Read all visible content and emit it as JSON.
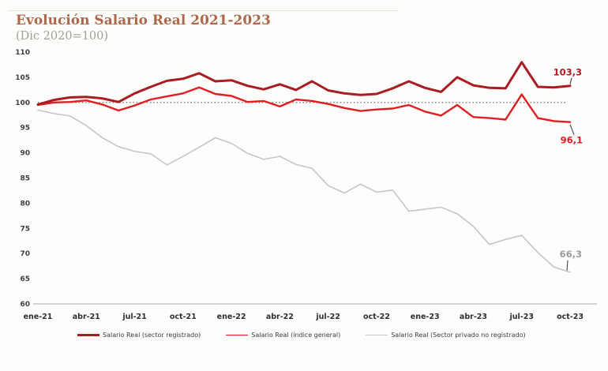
{
  "header": {
    "title": "Evolución Salario Real 2021-2023",
    "subtitle": "(Dic 2020=100)"
  },
  "chart_data": {
    "type": "line",
    "title": "Evolución Salario Real 2021-2023",
    "subtitle": "(Dic 2020=100)",
    "x": [
      "ene-21",
      "feb-21",
      "mar-21",
      "abr-21",
      "may-21",
      "jun-21",
      "jul-21",
      "ago-21",
      "sep-21",
      "oct-21",
      "nov-21",
      "dic-21",
      "ene-22",
      "feb-22",
      "mar-22",
      "abr-22",
      "may-22",
      "jun-22",
      "jul-22",
      "ago-22",
      "sep-22",
      "oct-22",
      "nov-22",
      "dic-22",
      "ene-23",
      "feb-23",
      "mar-23",
      "abr-23",
      "may-23",
      "jun-23",
      "jul-23",
      "ago-23",
      "sep-23",
      "oct-23"
    ],
    "x_tick_labels": [
      "ene-21",
      "abr-21",
      "jul-21",
      "oct-21",
      "ene-22",
      "abr-22",
      "jul-22",
      "oct-22",
      "ene-23",
      "abr-23",
      "jul-23",
      "oct-23"
    ],
    "ylim": [
      60,
      110
    ],
    "y_ticks": [
      110,
      105,
      100,
      95,
      90,
      85,
      80,
      75,
      70,
      65,
      60
    ],
    "reference_line": {
      "value": 100,
      "style": "dotted",
      "color": "#767676"
    },
    "baseline_value": 60,
    "grid": "off",
    "legend_position": "bottom",
    "series": [
      {
        "name": "Salario Real (sector registrado)",
        "color": "#a81c22",
        "label_color": "#a81c22",
        "line_width": 3,
        "end_label": "103,3",
        "values": [
          99.6,
          100.5,
          101.0,
          101.1,
          100.8,
          100.1,
          101.8,
          103.1,
          104.3,
          104.7,
          105.8,
          104.2,
          104.4,
          103.3,
          102.6,
          103.6,
          102.5,
          104.2,
          102.4,
          101.8,
          101.5,
          101.7,
          102.8,
          104.2,
          102.9,
          102.1,
          105.0,
          103.4,
          102.9,
          102.8,
          108.0,
          103.1,
          103.0,
          103.3
        ]
      },
      {
        "name": "Salario Real (índice general)",
        "color": "#e21d22",
        "label_color": "#e21d22",
        "line_width": 2.4,
        "end_label": "96,1",
        "values": [
          99.5,
          100.0,
          100.1,
          100.4,
          99.6,
          98.4,
          99.4,
          100.6,
          101.2,
          101.8,
          103.0,
          101.7,
          101.3,
          100.1,
          100.3,
          99.2,
          100.6,
          100.3,
          99.7,
          98.9,
          98.3,
          98.6,
          98.8,
          99.5,
          98.2,
          97.4,
          99.5,
          97.1,
          96.9,
          96.6,
          101.6,
          96.9,
          96.3,
          96.1
        ]
      },
      {
        "name": "Salario Real (Sector privado no registrado)",
        "color": "#c6c6c6",
        "label_color": "#9a9a9a",
        "line_width": 1.6,
        "end_label": "66,3",
        "values": [
          98.5,
          97.8,
          97.3,
          95.4,
          93.0,
          91.2,
          90.3,
          89.8,
          87.6,
          89.3,
          91.1,
          93.0,
          91.9,
          89.9,
          88.7,
          89.3,
          87.7,
          86.9,
          83.5,
          82.0,
          83.8,
          82.2,
          82.6,
          78.4,
          78.8,
          79.2,
          77.9,
          75.4,
          71.8,
          72.8,
          73.6,
          70.2,
          67.3,
          66.3
        ]
      }
    ]
  }
}
